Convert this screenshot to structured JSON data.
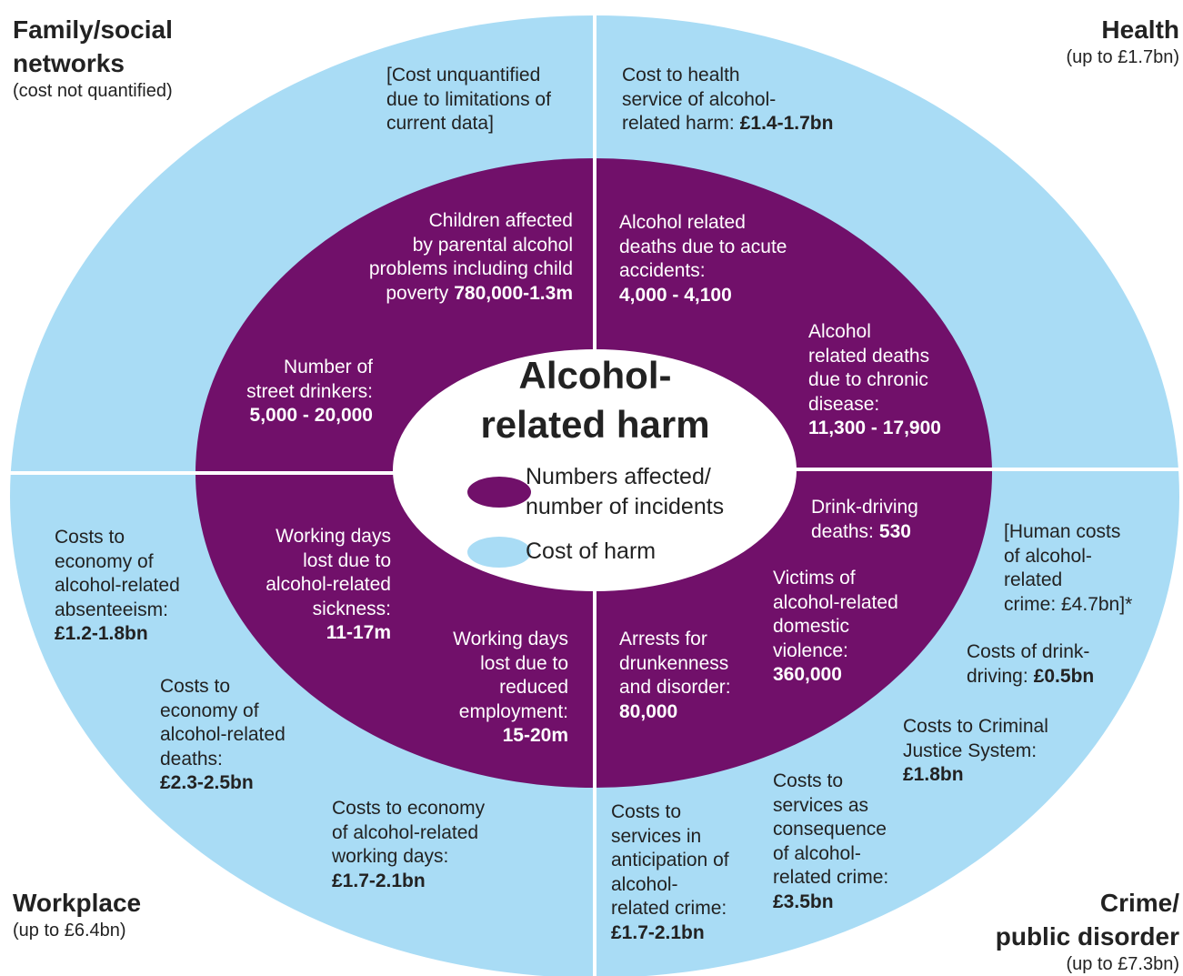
{
  "sections": [
    {
      "title_lines": [
        "Family/social",
        "networks"
      ],
      "subtitle": "(cost not quantified)"
    },
    {
      "title_lines": [
        "Health"
      ],
      "subtitle": "(up to £1.7bn)"
    },
    {
      "title_lines": [
        "Workplace"
      ],
      "subtitle": "(up to £6.4bn)"
    },
    {
      "title_lines": [
        "Crime/",
        "public disorder"
      ],
      "subtitle": "(up to £7.3bn)"
    }
  ],
  "center": {
    "title_lines": [
      "Alcohol-",
      "related harm"
    ]
  },
  "legend": [
    {
      "lines": [
        "Numbers affected/",
        "number of incidents"
      ]
    },
    {
      "lines": [
        "Cost of harm"
      ]
    }
  ],
  "cost_blocks": [
    {
      "lines": [
        "[Cost unquantified",
        "due to limitations of",
        "current data]"
      ]
    },
    {
      "lines": [
        "Cost to health",
        "service of alcohol-",
        "related harm:"
      ],
      "value": "£1.4-1.7bn"
    },
    {
      "lines": [
        "Costs to",
        "economy of",
        "alcohol-related",
        "absenteeism:"
      ],
      "value": "£1.2-1.8bn"
    },
    {
      "lines": [
        "Costs to",
        "economy of",
        "alcohol-related",
        "deaths:"
      ],
      "value": "£2.3-2.5bn"
    },
    {
      "lines": [
        "Costs to economy",
        "of alcohol-related",
        "working days:"
      ],
      "value": "£1.7-2.1bn"
    },
    {
      "lines": [
        "Costs to",
        "services in",
        "anticipation of",
        "alcohol-",
        "related crime:"
      ],
      "value": "£1.7-2.1bn"
    },
    {
      "lines": [
        "Costs to",
        "services as",
        "consequence",
        "of alcohol-",
        "related crime:"
      ],
      "value": "£3.5bn"
    },
    {
      "lines": [
        "Costs to Criminal",
        "Justice System:"
      ],
      "value": "£1.8bn"
    },
    {
      "lines": [
        "Costs of drink-",
        "driving:"
      ],
      "value": "£0.5bn"
    },
    {
      "lines": [
        "[Human costs",
        "of alcohol-",
        "related",
        "crime: £4.7bn]*"
      ]
    }
  ],
  "number_blocks": [
    {
      "lines": [
        "Children affected",
        "by parental alcohol",
        "problems including child",
        "poverty"
      ],
      "value": "780,000-1.3m"
    },
    {
      "lines": [
        "Number of",
        "street drinkers:"
      ],
      "value": "5,000 - 20,000"
    },
    {
      "lines": [
        "Alcohol related",
        "deaths due to acute",
        "accidents:"
      ],
      "value": "4,000 - 4,100"
    },
    {
      "lines": [
        "Alcohol",
        "related deaths",
        "due to chronic",
        "disease:"
      ],
      "value": "11,300 - 17,900"
    },
    {
      "lines": [
        "Working days",
        "lost due to",
        "alcohol-related",
        "sickness:"
      ],
      "value": "11-17m"
    },
    {
      "lines": [
        "Working days",
        "lost due to",
        "reduced",
        "employment:"
      ],
      "value": "15-20m"
    },
    {
      "lines": [
        "Drink-driving",
        "deaths:"
      ],
      "value": "530"
    },
    {
      "lines": [
        "Victims of",
        "alcohol-related",
        "domestic",
        "violence:"
      ],
      "value": "360,000"
    },
    {
      "lines": [
        "Arrests for",
        "drunkenness",
        "and disorder:"
      ],
      "value": "80,000"
    }
  ]
}
